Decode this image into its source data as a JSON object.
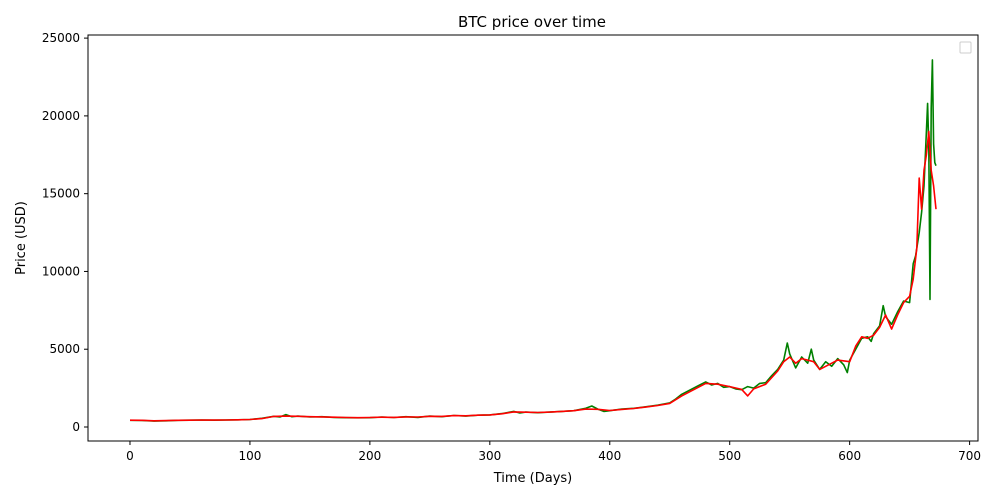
{
  "chart_data": {
    "type": "line",
    "title": "BTC price over time",
    "xlabel": "Time (Days)",
    "ylabel": "Price (USD)",
    "xlim": [
      -35,
      707
    ],
    "ylim": [
      -900,
      25200
    ],
    "xticks": [
      0,
      100,
      200,
      300,
      400,
      500,
      600,
      700
    ],
    "yticks": [
      0,
      5000,
      10000,
      15000,
      20000,
      25000
    ],
    "grid": false,
    "legend": {
      "placement": "top-right",
      "entries": []
    },
    "series": [
      {
        "color": "#008000",
        "points": [
          [
            0,
            430
          ],
          [
            10,
            420
          ],
          [
            20,
            380
          ],
          [
            30,
            400
          ],
          [
            40,
            430
          ],
          [
            50,
            440
          ],
          [
            60,
            450
          ],
          [
            70,
            440
          ],
          [
            80,
            450
          ],
          [
            90,
            460
          ],
          [
            100,
            480
          ],
          [
            110,
            560
          ],
          [
            120,
            690
          ],
          [
            125,
            640
          ],
          [
            130,
            800
          ],
          [
            135,
            660
          ],
          [
            140,
            700
          ],
          [
            150,
            640
          ],
          [
            160,
            660
          ],
          [
            170,
            620
          ],
          [
            180,
            600
          ],
          [
            190,
            590
          ],
          [
            200,
            600
          ],
          [
            210,
            640
          ],
          [
            220,
            610
          ],
          [
            230,
            660
          ],
          [
            240,
            620
          ],
          [
            250,
            700
          ],
          [
            260,
            660
          ],
          [
            270,
            740
          ],
          [
            280,
            700
          ],
          [
            290,
            760
          ],
          [
            300,
            780
          ],
          [
            310,
            860
          ],
          [
            320,
            1000
          ],
          [
            325,
            900
          ],
          [
            330,
            960
          ],
          [
            340,
            920
          ],
          [
            350,
            960
          ],
          [
            360,
            1000
          ],
          [
            370,
            1050
          ],
          [
            380,
            1200
          ],
          [
            385,
            1350
          ],
          [
            390,
            1150
          ],
          [
            395,
            1000
          ],
          [
            400,
            1050
          ],
          [
            410,
            1150
          ],
          [
            420,
            1200
          ],
          [
            430,
            1300
          ],
          [
            440,
            1400
          ],
          [
            450,
            1550
          ],
          [
            455,
            1800
          ],
          [
            460,
            2100
          ],
          [
            465,
            2300
          ],
          [
            470,
            2500
          ],
          [
            475,
            2700
          ],
          [
            480,
            2900
          ],
          [
            485,
            2700
          ],
          [
            490,
            2800
          ],
          [
            495,
            2550
          ],
          [
            500,
            2600
          ],
          [
            505,
            2450
          ],
          [
            510,
            2400
          ],
          [
            515,
            2600
          ],
          [
            520,
            2500
          ],
          [
            525,
            2800
          ],
          [
            530,
            2850
          ],
          [
            535,
            3300
          ],
          [
            540,
            3700
          ],
          [
            545,
            4300
          ],
          [
            548,
            5400
          ],
          [
            550,
            4700
          ],
          [
            555,
            3800
          ],
          [
            560,
            4500
          ],
          [
            565,
            4100
          ],
          [
            568,
            5000
          ],
          [
            570,
            4300
          ],
          [
            575,
            3700
          ],
          [
            580,
            4200
          ],
          [
            585,
            3900
          ],
          [
            590,
            4400
          ],
          [
            595,
            4000
          ],
          [
            598,
            3500
          ],
          [
            600,
            4300
          ],
          [
            605,
            5000
          ],
          [
            610,
            5700
          ],
          [
            615,
            5800
          ],
          [
            618,
            5500
          ],
          [
            620,
            6000
          ],
          [
            625,
            6500
          ],
          [
            628,
            7800
          ],
          [
            630,
            7100
          ],
          [
            635,
            6600
          ],
          [
            640,
            7400
          ],
          [
            645,
            8100
          ],
          [
            650,
            8000
          ],
          [
            653,
            10500
          ],
          [
            655,
            11000
          ],
          [
            658,
            12500
          ],
          [
            660,
            13800
          ],
          [
            662,
            15500
          ],
          [
            664,
            19000
          ],
          [
            665,
            20800
          ],
          [
            666,
            18000
          ],
          [
            667,
            8200
          ],
          [
            668,
            20500
          ],
          [
            669,
            23600
          ],
          [
            670,
            18200
          ],
          [
            671,
            17000
          ],
          [
            672,
            16800
          ]
        ]
      },
      {
        "color": "#ff0000",
        "points": [
          [
            0,
            440
          ],
          [
            10,
            430
          ],
          [
            20,
            400
          ],
          [
            30,
            410
          ],
          [
            40,
            430
          ],
          [
            50,
            440
          ],
          [
            60,
            450
          ],
          [
            70,
            445
          ],
          [
            80,
            450
          ],
          [
            90,
            460
          ],
          [
            100,
            480
          ],
          [
            110,
            540
          ],
          [
            120,
            680
          ],
          [
            130,
            700
          ],
          [
            140,
            690
          ],
          [
            150,
            660
          ],
          [
            160,
            650
          ],
          [
            170,
            630
          ],
          [
            180,
            610
          ],
          [
            190,
            600
          ],
          [
            200,
            610
          ],
          [
            210,
            630
          ],
          [
            220,
            620
          ],
          [
            230,
            650
          ],
          [
            240,
            640
          ],
          [
            250,
            690
          ],
          [
            260,
            680
          ],
          [
            270,
            730
          ],
          [
            280,
            720
          ],
          [
            290,
            760
          ],
          [
            300,
            780
          ],
          [
            310,
            850
          ],
          [
            320,
            970
          ],
          [
            330,
            950
          ],
          [
            340,
            930
          ],
          [
            350,
            960
          ],
          [
            360,
            1000
          ],
          [
            370,
            1050
          ],
          [
            380,
            1150
          ],
          [
            390,
            1140
          ],
          [
            400,
            1060
          ],
          [
            410,
            1130
          ],
          [
            420,
            1190
          ],
          [
            430,
            1280
          ],
          [
            440,
            1380
          ],
          [
            450,
            1520
          ],
          [
            460,
            2000
          ],
          [
            470,
            2400
          ],
          [
            480,
            2800
          ],
          [
            490,
            2750
          ],
          [
            500,
            2600
          ],
          [
            510,
            2420
          ],
          [
            515,
            2000
          ],
          [
            520,
            2450
          ],
          [
            530,
            2750
          ],
          [
            540,
            3600
          ],
          [
            545,
            4200
          ],
          [
            550,
            4500
          ],
          [
            555,
            4100
          ],
          [
            560,
            4400
          ],
          [
            570,
            4200
          ],
          [
            575,
            3700
          ],
          [
            580,
            3900
          ],
          [
            590,
            4300
          ],
          [
            600,
            4200
          ],
          [
            605,
            5200
          ],
          [
            610,
            5800
          ],
          [
            615,
            5700
          ],
          [
            620,
            5900
          ],
          [
            625,
            6400
          ],
          [
            630,
            7200
          ],
          [
            635,
            6300
          ],
          [
            640,
            7200
          ],
          [
            645,
            8000
          ],
          [
            650,
            8400
          ],
          [
            653,
            9500
          ],
          [
            656,
            11500
          ],
          [
            658,
            16000
          ],
          [
            660,
            14000
          ],
          [
            662,
            16500
          ],
          [
            664,
            17500
          ],
          [
            666,
            19000
          ],
          [
            668,
            16500
          ],
          [
            670,
            15500
          ],
          [
            672,
            14000
          ]
        ]
      }
    ]
  }
}
